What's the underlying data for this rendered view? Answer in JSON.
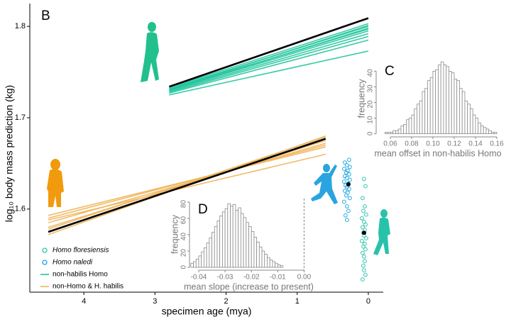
{
  "chart_data": [
    {
      "type": "line",
      "panel": "B",
      "x_label": "specimen age (mya)",
      "y_label": "log₁₀ body mass prediction (kg)",
      "xlim": [
        4.76,
        -0.21
      ],
      "ylim": [
        1.509,
        1.825
      ],
      "xticks": [
        4,
        3,
        2,
        1,
        0
      ],
      "yticks": [
        {
          "value": 1.6,
          "label": "1.6"
        },
        {
          "value": 1.7,
          "label": "1.7"
        },
        {
          "value": 1.8,
          "label": "1.8"
        }
      ],
      "fit_color": "#000000",
      "series": [
        {
          "name": "non-habilis Homo",
          "color": "#22c59d",
          "x": [
            2.8,
            0
          ],
          "values": [
            [
              1.733,
              1.803
            ],
            [
              1.732,
              1.8
            ],
            [
              1.731,
              1.797
            ],
            [
              1.73,
              1.795
            ],
            [
              1.729,
              1.792
            ],
            [
              1.728,
              1.789
            ],
            [
              1.73,
              1.798
            ],
            [
              1.727,
              1.785
            ],
            [
              1.725,
              1.773
            ],
            [
              1.731,
              1.801
            ]
          ],
          "fit": [
            1.734,
            1.809
          ]
        },
        {
          "name": "non-Homo & H. habilis",
          "color": "#f0b55a",
          "x": [
            4.5,
            0.6
          ],
          "values": [
            [
              1.575,
              1.677
            ],
            [
              1.58,
              1.675
            ],
            [
              1.585,
              1.672
            ],
            [
              1.59,
              1.67
            ],
            [
              1.593,
              1.668
            ],
            [
              1.578,
              1.679
            ],
            [
              1.588,
              1.66
            ],
            [
              1.572,
              1.68
            ]
          ],
          "fit": [
            1.575,
            1.677
          ]
        }
      ],
      "points": [
        {
          "name": "Homo floresiensis",
          "color": "#2ec4b0",
          "x": [
            0.06,
            0.04,
            0.08,
            0.05,
            0.07,
            0.03,
            0.09,
            0.06,
            0.04,
            0.08,
            0.05,
            0.07,
            0.06,
            0.03,
            0.09,
            0.05,
            0.07,
            0.04,
            0.08,
            0.06,
            0.05,
            0.07,
            0.06,
            0.04,
            0.08
          ],
          "values": [
            1.633,
            1.625,
            1.612,
            1.603,
            1.598,
            1.594,
            1.59,
            1.586,
            1.583,
            1.58,
            1.577,
            1.574,
            1.571,
            1.568,
            1.565,
            1.562,
            1.559,
            1.556,
            1.552,
            1.548,
            1.543,
            1.538,
            1.533,
            1.528,
            1.523
          ],
          "mean_x": 0.06,
          "mean": 1.574
        },
        {
          "name": "Homo naledi",
          "color": "#1fa9e1",
          "x": [
            0.27,
            0.33,
            0.3,
            0.26,
            0.34,
            0.29,
            0.31,
            0.27,
            0.33,
            0.3,
            0.26,
            0.34,
            0.28,
            0.32,
            0.3,
            0.27,
            0.33,
            0.29,
            0.31,
            0.26,
            0.34,
            0.3,
            0.28,
            0.32,
            0.3
          ],
          "values": [
            1.654,
            1.651,
            1.648,
            1.646,
            1.644,
            1.642,
            1.64,
            1.638,
            1.636,
            1.634,
            1.632,
            1.63,
            1.628,
            1.626,
            1.624,
            1.622,
            1.62,
            1.618,
            1.615,
            1.612,
            1.608,
            1.603,
            1.598,
            1.593,
            1.588
          ],
          "mean_x": 0.28,
          "mean": 1.627
        }
      ]
    },
    {
      "type": "histogram",
      "panel": "C",
      "x_label": "mean offset in non-habilis Homo",
      "y_label": "frequency",
      "xlim": [
        0.0467,
        0.1627
      ],
      "ylim": [
        -2,
        47
      ],
      "xticks": [
        0.06,
        0.08,
        {
          "value": 0.1,
          "label": "0.10"
        },
        0.12,
        0.14,
        0.16
      ],
      "yticks": [
        0,
        10,
        20,
        30,
        40
      ],
      "color": "#ffffff",
      "edge_color": "#8a8a8a",
      "bins": [
        0.05,
        0.0525,
        0.055,
        0.0575,
        0.06,
        0.0625,
        0.065,
        0.0675,
        0.07,
        0.0725,
        0.075,
        0.0775,
        0.08,
        0.0825,
        0.085,
        0.0875,
        0.09,
        0.0925,
        0.095,
        0.0975,
        0.1,
        0.1025,
        0.105,
        0.1075,
        0.11,
        0.1125,
        0.115,
        0.1175,
        0.12,
        0.1225,
        0.125,
        0.1275,
        0.13,
        0.1325,
        0.135,
        0.1375,
        0.14,
        0.1425,
        0.145,
        0.1475,
        0.15,
        0.1525,
        0.155,
        0.1575,
        0.16
      ],
      "counts": [
        0,
        0,
        1,
        1,
        1,
        2,
        2,
        3,
        5,
        6,
        9,
        10,
        12,
        16,
        19,
        21,
        27,
        29,
        34,
        36,
        40,
        41,
        44,
        46,
        44,
        43,
        40,
        39,
        35,
        34,
        29,
        27,
        21,
        19,
        16,
        12,
        10,
        7,
        5,
        4,
        3,
        2,
        1,
        1
      ]
    },
    {
      "type": "histogram",
      "panel": "D",
      "x_label": "mean slope (increase to present)",
      "y_label": "frequency",
      "xlim": [
        -0.0435,
        0.0015
      ],
      "ylim": [
        -3.5,
        84.3
      ],
      "xticks": [
        -0.04,
        -0.03,
        -0.02,
        -0.01,
        {
          "value": 0,
          "label": "0.00"
        }
      ],
      "yticks": [
        0,
        20,
        40,
        60,
        80
      ],
      "color": "#ffffff",
      "edge_color": "#8a8a8a",
      "reference_line": 0,
      "bins": [
        -0.043,
        -0.042,
        -0.041,
        -0.04,
        -0.039,
        -0.038,
        -0.037,
        -0.036,
        -0.035,
        -0.034,
        -0.033,
        -0.032,
        -0.031,
        -0.03,
        -0.029,
        -0.028,
        -0.027,
        -0.026,
        -0.025,
        -0.024,
        -0.023,
        -0.022,
        -0.021,
        -0.02,
        -0.019,
        -0.018,
        -0.017,
        -0.016,
        -0.015,
        -0.014,
        -0.013,
        -0.012,
        -0.011,
        -0.01,
        -0.009,
        -0.008
      ],
      "counts": [
        5,
        7,
        10,
        14,
        19,
        24,
        30,
        36,
        43,
        50,
        57,
        63,
        68,
        72,
        78,
        75,
        77,
        70,
        73,
        66,
        61,
        55,
        50,
        44,
        37,
        31,
        25,
        20,
        16,
        12,
        9,
        7,
        5,
        3,
        2
      ]
    }
  ]
}
